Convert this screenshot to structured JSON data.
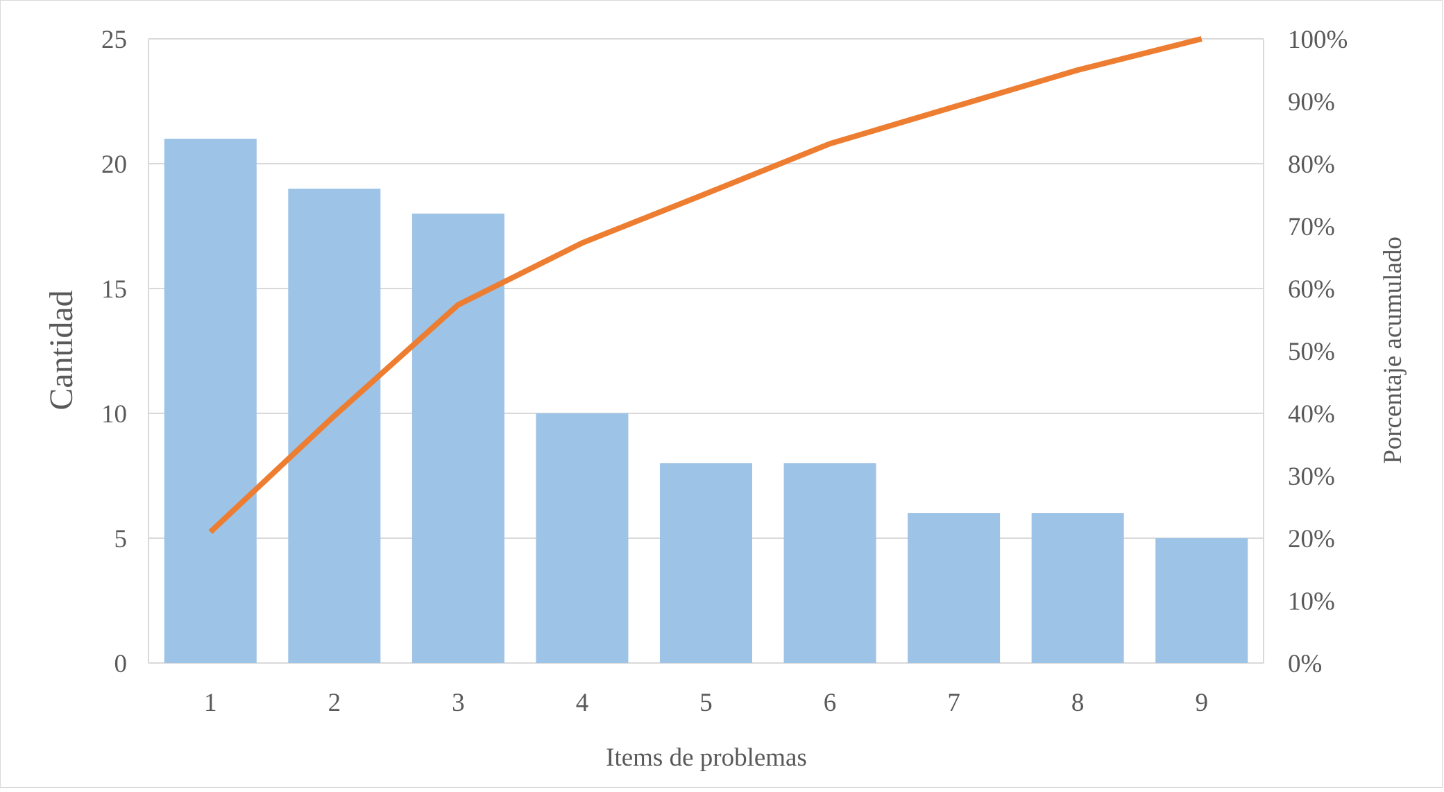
{
  "chart_data": {
    "type": "bar",
    "categories": [
      "1",
      "2",
      "3",
      "4",
      "5",
      "6",
      "7",
      "8",
      "9"
    ],
    "series": [
      {
        "type": "bar",
        "axis": "left",
        "values": [
          21,
          19,
          18,
          10,
          8,
          8,
          6,
          6,
          5
        ]
      },
      {
        "type": "line",
        "axis": "right",
        "values": [
          21,
          39.6,
          57.4,
          67.3,
          75.2,
          83.2,
          89.1,
          95.0,
          100
        ]
      }
    ],
    "xlabel": "Items de problemas",
    "ylabel": "Cantidad",
    "y2label": "Porcentaje acumulado",
    "ylim": [
      0,
      25
    ],
    "y2lim": [
      0,
      100
    ],
    "yticks": [
      "0",
      "5",
      "10",
      "15",
      "20",
      "25"
    ],
    "y2ticks": [
      "0%",
      "10%",
      "20%",
      "30%",
      "40%",
      "50%",
      "60%",
      "70%",
      "80%",
      "90%",
      "100%"
    ],
    "grid": true,
    "legend": "none",
    "colors": {
      "bar": "#9dc3e6",
      "line": "#ed7d31",
      "grid": "#d9d9d9",
      "text": "#595959"
    }
  }
}
